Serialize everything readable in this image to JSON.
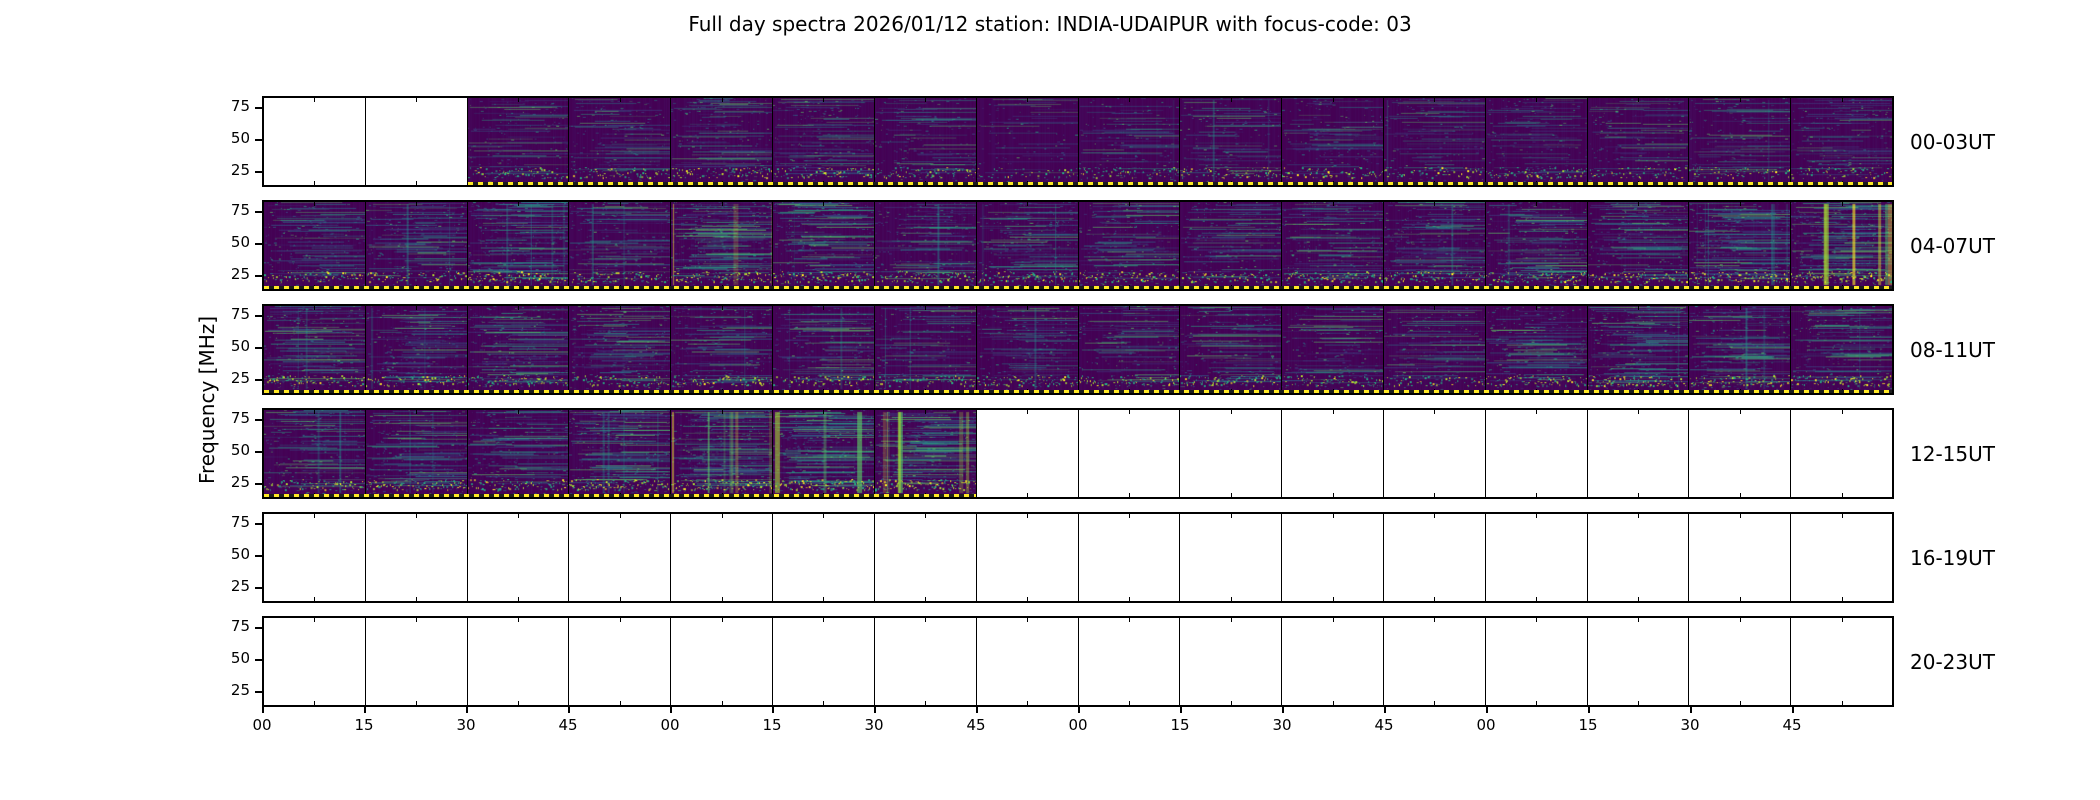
{
  "chart_data": {
    "type": "heatmap",
    "title": "Full day spectra 2026/01/12 station: INDIA-UDAIPUR with focus-code: 03",
    "date": "2026/01/12",
    "station": "INDIA-UDAIPUR",
    "focus_code": "03",
    "ylabel": "Frequency [MHz]",
    "y_ticks": [
      "75",
      "50",
      "25"
    ],
    "y_range_mhz": [
      10,
      85
    ],
    "x_ticks": [
      "00",
      "15",
      "30",
      "45",
      "00",
      "15",
      "30",
      "45",
      "00",
      "15",
      "30",
      "45",
      "00",
      "15",
      "30",
      "45"
    ],
    "panels_per_row": 16,
    "colormap": "viridis",
    "palette": [
      "#440154",
      "#46327e",
      "#3b518b",
      "#2c718e",
      "#21918c",
      "#27ad81",
      "#5cc863",
      "#aadc32",
      "#fde725"
    ],
    "blank_color": "#ffffff",
    "background_color": "#440154",
    "dotted_line_color": "#fde725",
    "legend_position": "none",
    "grid": false,
    "rows": [
      {
        "label": "00-03UT",
        "panels": [
          null,
          null,
          0.3,
          0.35,
          0.4,
          0.45,
          0.35,
          0.1,
          0.25,
          0.3,
          0.3,
          0.25,
          0.3,
          0.3,
          0.3,
          0.35
        ]
      },
      {
        "label": "04-07UT",
        "panels": [
          0.5,
          0.55,
          0.75,
          0.5,
          0.85,
          0.7,
          0.45,
          0.55,
          0.5,
          0.45,
          0.5,
          0.55,
          0.6,
          0.65,
          0.8,
          0.85
        ]
      },
      {
        "label": "08-11UT",
        "panels": [
          0.6,
          0.55,
          0.6,
          0.55,
          0.5,
          0.5,
          0.35,
          0.45,
          0.4,
          0.45,
          0.4,
          0.35,
          0.55,
          0.7,
          0.6,
          0.55
        ]
      },
      {
        "label": "12-15UT",
        "panels": [
          0.55,
          0.6,
          0.55,
          0.75,
          0.85,
          0.95,
          0.9,
          null,
          null,
          null,
          null,
          null,
          null,
          null,
          null,
          null
        ]
      },
      {
        "label": "16-19UT",
        "panels": [
          null,
          null,
          null,
          null,
          null,
          null,
          null,
          null,
          null,
          null,
          null,
          null,
          null,
          null,
          null,
          null
        ]
      },
      {
        "label": "20-23UT",
        "panels": [
          null,
          null,
          null,
          null,
          null,
          null,
          null,
          null,
          null,
          null,
          null,
          null,
          null,
          null,
          null,
          null
        ]
      }
    ]
  }
}
